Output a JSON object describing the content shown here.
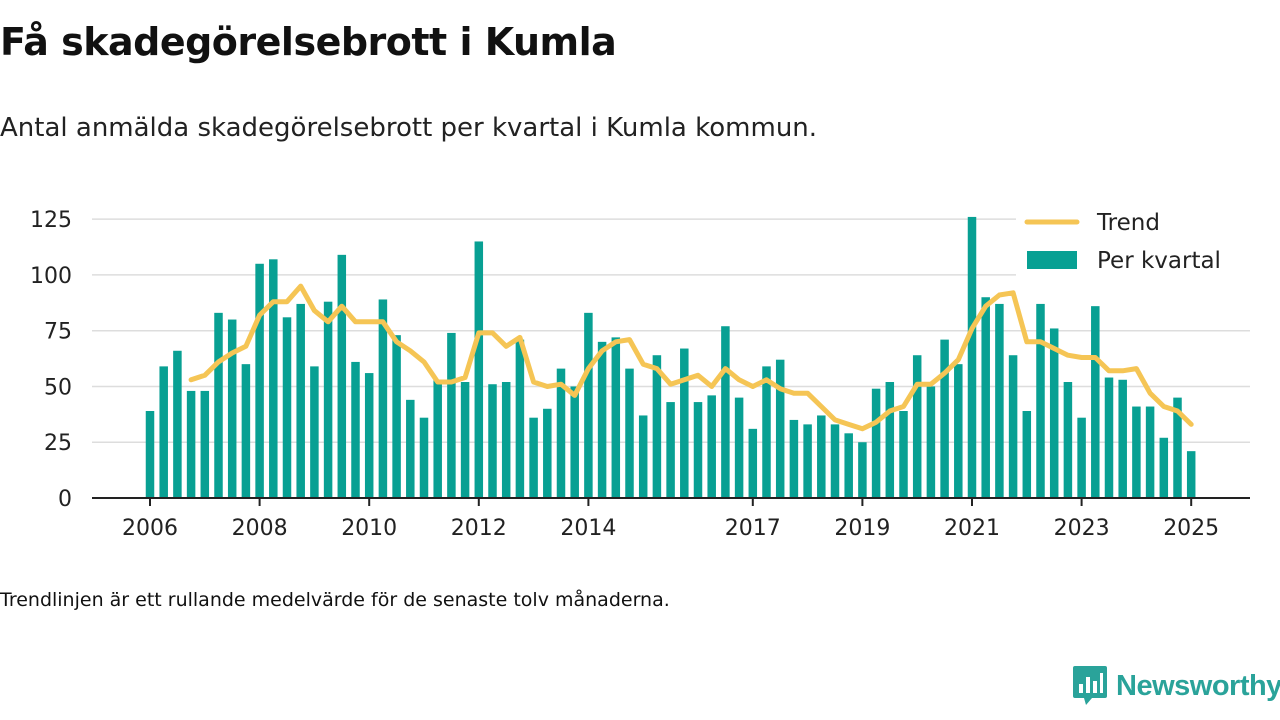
{
  "title": "Få skadegörelsebrott i Kumla",
  "subtitle": "Antal anmälda skadegörelsebrott per kvartal i Kumla kommun.",
  "footnote": "Trendlinjen är ett rullande medelvärde för de senaste tolv månaderna.",
  "brand": {
    "name": "Newsworthy",
    "icon": "newsworthy-logo-icon",
    "color": "#2aa39a"
  },
  "chart_data": {
    "type": "bar",
    "ylim": [
      0,
      130
    ],
    "yticks": [
      0,
      25,
      50,
      75,
      100,
      125
    ],
    "xtick_labels": [
      "2006",
      "2008",
      "2010",
      "2012",
      "2014",
      "2017",
      "2019",
      "2021",
      "2023",
      "2025"
    ],
    "xtick_positions": [
      0,
      8,
      16,
      24,
      32,
      44,
      52,
      60,
      68,
      76
    ],
    "grid": true,
    "legend_position": "top-right",
    "colors": {
      "bars": "#08a093",
      "trend": "#f5c555",
      "grid": "#dddddd",
      "axis": "#222222"
    },
    "series": [
      {
        "name": "Per kvartal",
        "type": "bar",
        "values": [
          39,
          59,
          66,
          48,
          48,
          83,
          80,
          60,
          105,
          107,
          81,
          87,
          59,
          88,
          109,
          61,
          56,
          89,
          73,
          44,
          36,
          53,
          74,
          52,
          115,
          51,
          52,
          71,
          36,
          40,
          58,
          50,
          83,
          70,
          72,
          58,
          37,
          64,
          43,
          67,
          43,
          46,
          77,
          45,
          31,
          59,
          62,
          35,
          33,
          37,
          33,
          29,
          25,
          49,
          52,
          39,
          64,
          50,
          71,
          60,
          126,
          90,
          87,
          64,
          39,
          87,
          76,
          52,
          36,
          86,
          54,
          53,
          41,
          41,
          27,
          45,
          21
        ]
      },
      {
        "name": "Trend",
        "type": "line",
        "values": [
          null,
          null,
          null,
          53,
          55,
          61,
          65,
          68,
          82,
          88,
          88,
          95,
          84,
          79,
          86,
          79,
          79,
          79,
          70,
          66,
          61,
          52,
          52,
          54,
          74,
          74,
          68,
          72,
          52,
          50,
          51,
          46,
          58,
          66,
          70,
          71,
          60,
          58,
          51,
          53,
          55,
          50,
          58,
          53,
          50,
          53,
          49,
          47,
          47,
          41,
          35,
          33,
          31,
          34,
          39,
          41,
          51,
          51,
          56,
          62,
          76,
          86,
          91,
          92,
          70,
          70,
          67,
          64,
          63,
          63,
          57,
          57,
          58,
          47,
          41,
          39,
          33
        ]
      }
    ]
  }
}
